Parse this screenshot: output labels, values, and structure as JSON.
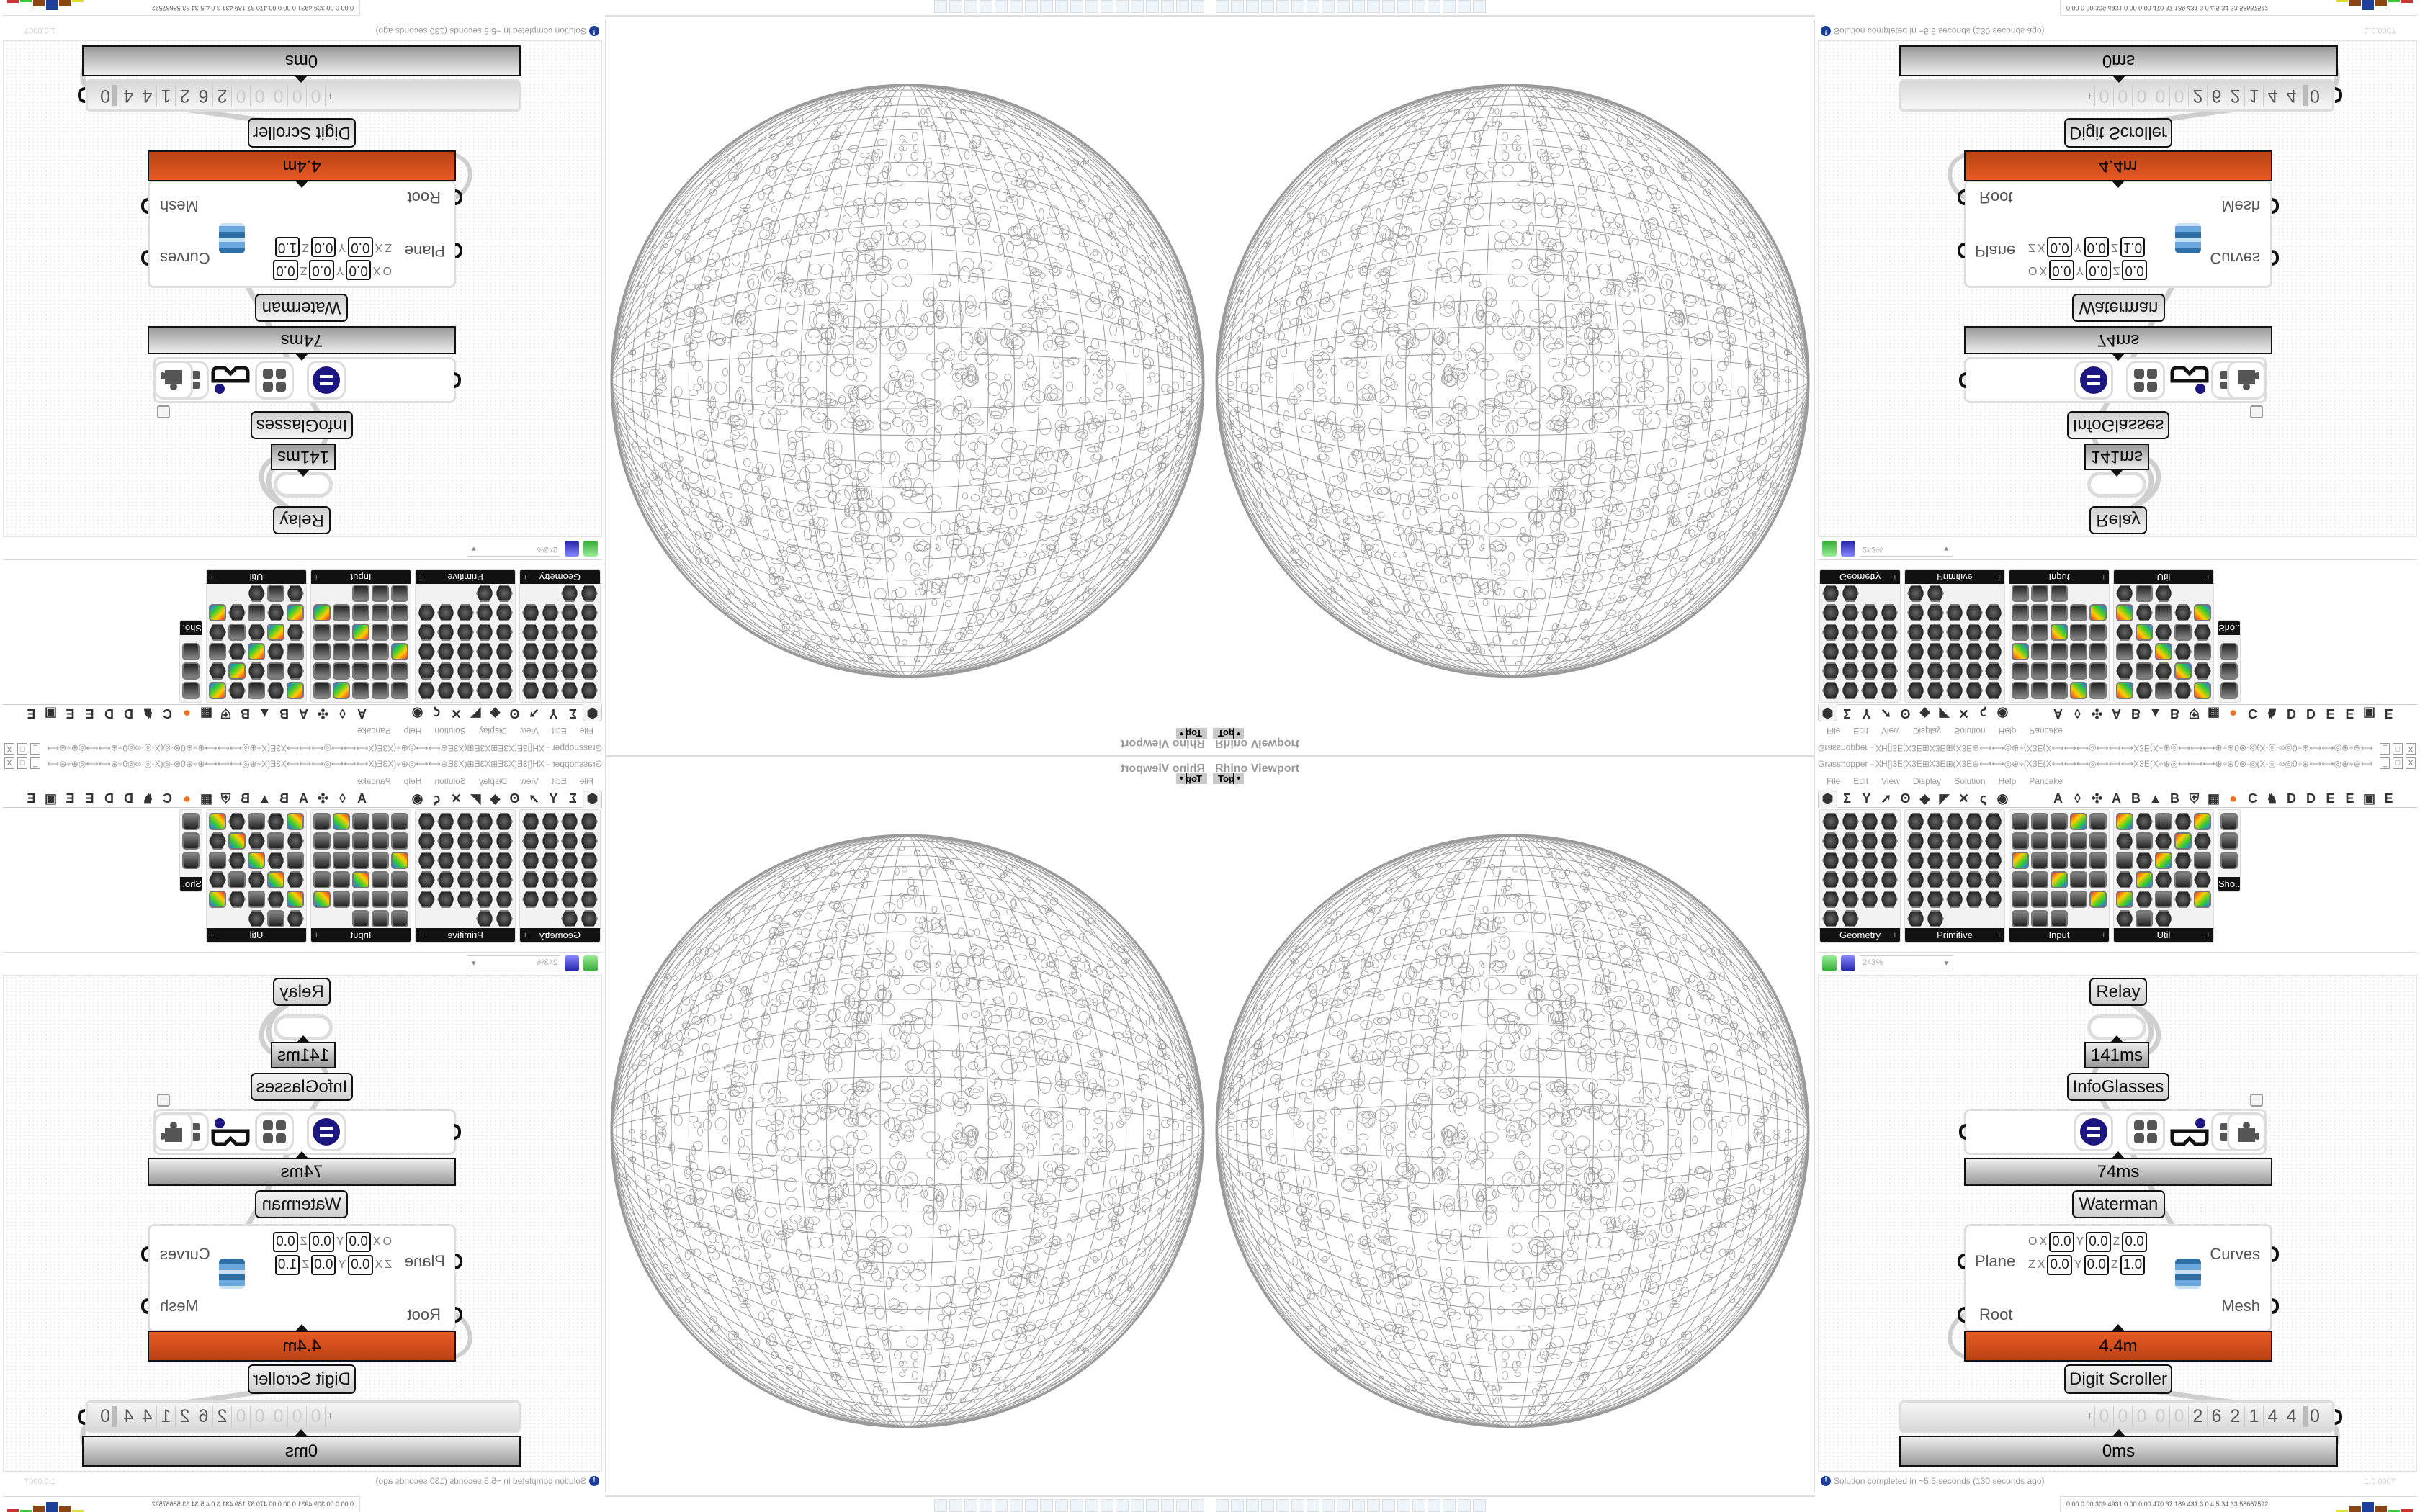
{
  "viewport": {
    "title": "Rhino Viewport",
    "view": "Top"
  },
  "taskbar": {
    "icons": [
      "usb-drive",
      "floppy-64",
      "notepad",
      "notepad",
      "notepad",
      "monitor",
      "notepad",
      "notepad",
      "folder",
      "control-panel",
      "calculator",
      "notepad",
      "notepad",
      "notepad",
      "firefox",
      "calculator",
      "inkscape",
      "red-app"
    ]
  },
  "grasshopper": {
    "title": "Grasshopper - XH[]3E(X3E⊞X3E⊞(X3E⊕⟷⟷◎⊕÷(X3E(X⟷⟷⟷◎⟷⟷⟷X3E(X÷⊕◎⟷⟷⟷⊕÷⊕0⊗-◎(X-◎-∞◎0÷⊕⟷⟷◎⊕÷⊕⟷⟷3E][3E⟷⟷⊕÷◎⟷⟷⊕÷⊕0⊗-◎(X-◎-∞◎0÷⊕⟷⟷◎⊕÷(X3E(X⟷⟷0...",
    "window_buttons": [
      "_",
      "□",
      "X"
    ],
    "menu": [
      "File",
      "Edit",
      "View",
      "Display",
      "Solution",
      "Help",
      "Pancake"
    ],
    "tabs_icons": [
      "⬢",
      "Σ",
      "Y",
      "➚",
      "ʘ",
      "◆",
      "◤",
      "✕",
      "ς",
      "◉"
    ],
    "tabs_letters": [
      "A",
      "◊",
      "✣",
      "A",
      "B",
      "▲",
      "B",
      "⛨",
      "▦",
      "●",
      "C",
      "♞",
      "D",
      "D",
      "E",
      "E",
      "▣",
      "E"
    ],
    "palettes": [
      {
        "label": "Geometry"
      },
      {
        "label": "Primitive"
      },
      {
        "label": "Input"
      },
      {
        "label": "Util"
      },
      {
        "label": "Sho..."
      }
    ],
    "zoom": "243%",
    "nodes": {
      "relay": "Relay",
      "relay_time": "141ms",
      "infoglasses": "InfoGlasses",
      "infoglasses_time": "74ms",
      "waterman": "Waterman",
      "waterman_time": "4.4m",
      "digit_scroller": "Digit Scroller",
      "digit_scroller_time": "0ms"
    },
    "waterman": {
      "inputs": [
        "Plane",
        "Root"
      ],
      "outputs": [
        "Curves",
        "Mesh"
      ],
      "origin": {
        "label": "O",
        "x": "0.0",
        "y": "0.0",
        "z": "0.0"
      },
      "zaxis": {
        "label": "Z",
        "x": "0.0",
        "y": "0.0",
        "z": "1.0"
      },
      "axis_labels": [
        "X",
        "Y",
        "Z"
      ]
    },
    "infoglasses_icons": [
      "equals-circle-icon",
      "four-squares-icon",
      "glasses-icon",
      "drawer-icon",
      "puzzle-icon"
    ],
    "scroller": {
      "sign": "+",
      "digits": [
        "0",
        "0",
        "0",
        "0",
        "0",
        "2",
        "6",
        "2",
        "1",
        "4",
        "4"
      ],
      "decimal": "0"
    },
    "status": "Solution completed in ~5.5 seconds (130 seconds ago)",
    "version": "1.0.0007",
    "meters": "0.00 0.00 309 4931 0.00 0.00 470  37  189  431  3.0  4.5  34  33  58667592"
  },
  "colors": {
    "accent_orange": "#e05321",
    "navy": "#1b1680",
    "wire": "#cfcfcf"
  }
}
